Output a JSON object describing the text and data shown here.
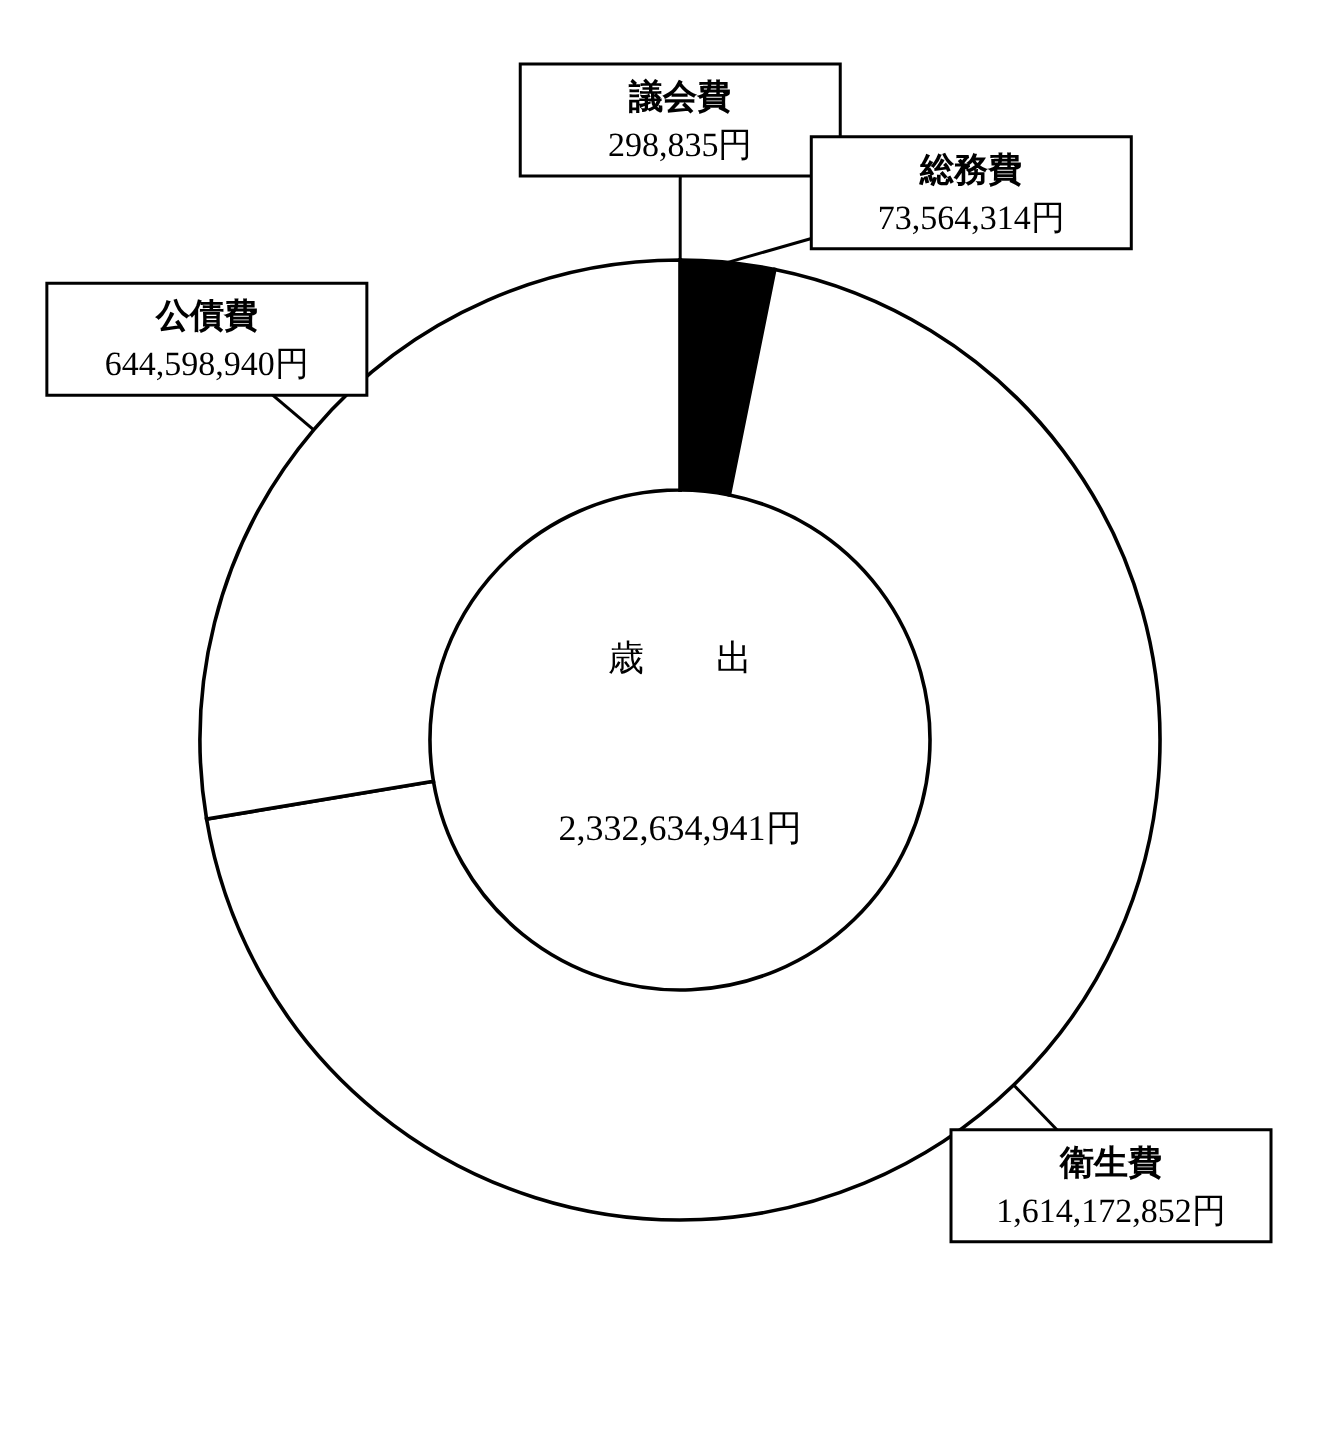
{
  "chart_data": {
    "type": "donut",
    "categories": [
      "議会費",
      "総務費",
      "衛生費",
      "公債費"
    ],
    "values": [
      298835,
      73564314,
      1614172852,
      644598940
    ],
    "colors": [
      "#ffffff",
      "#000000",
      "#ffffff",
      "#ffffff"
    ],
    "value_labels": [
      "298,835円",
      "73,564,314円",
      "1,614,172,852円",
      "644,598,940円"
    ],
    "annotations": [
      "歳　　出",
      "2,332,634,941円"
    ]
  }
}
